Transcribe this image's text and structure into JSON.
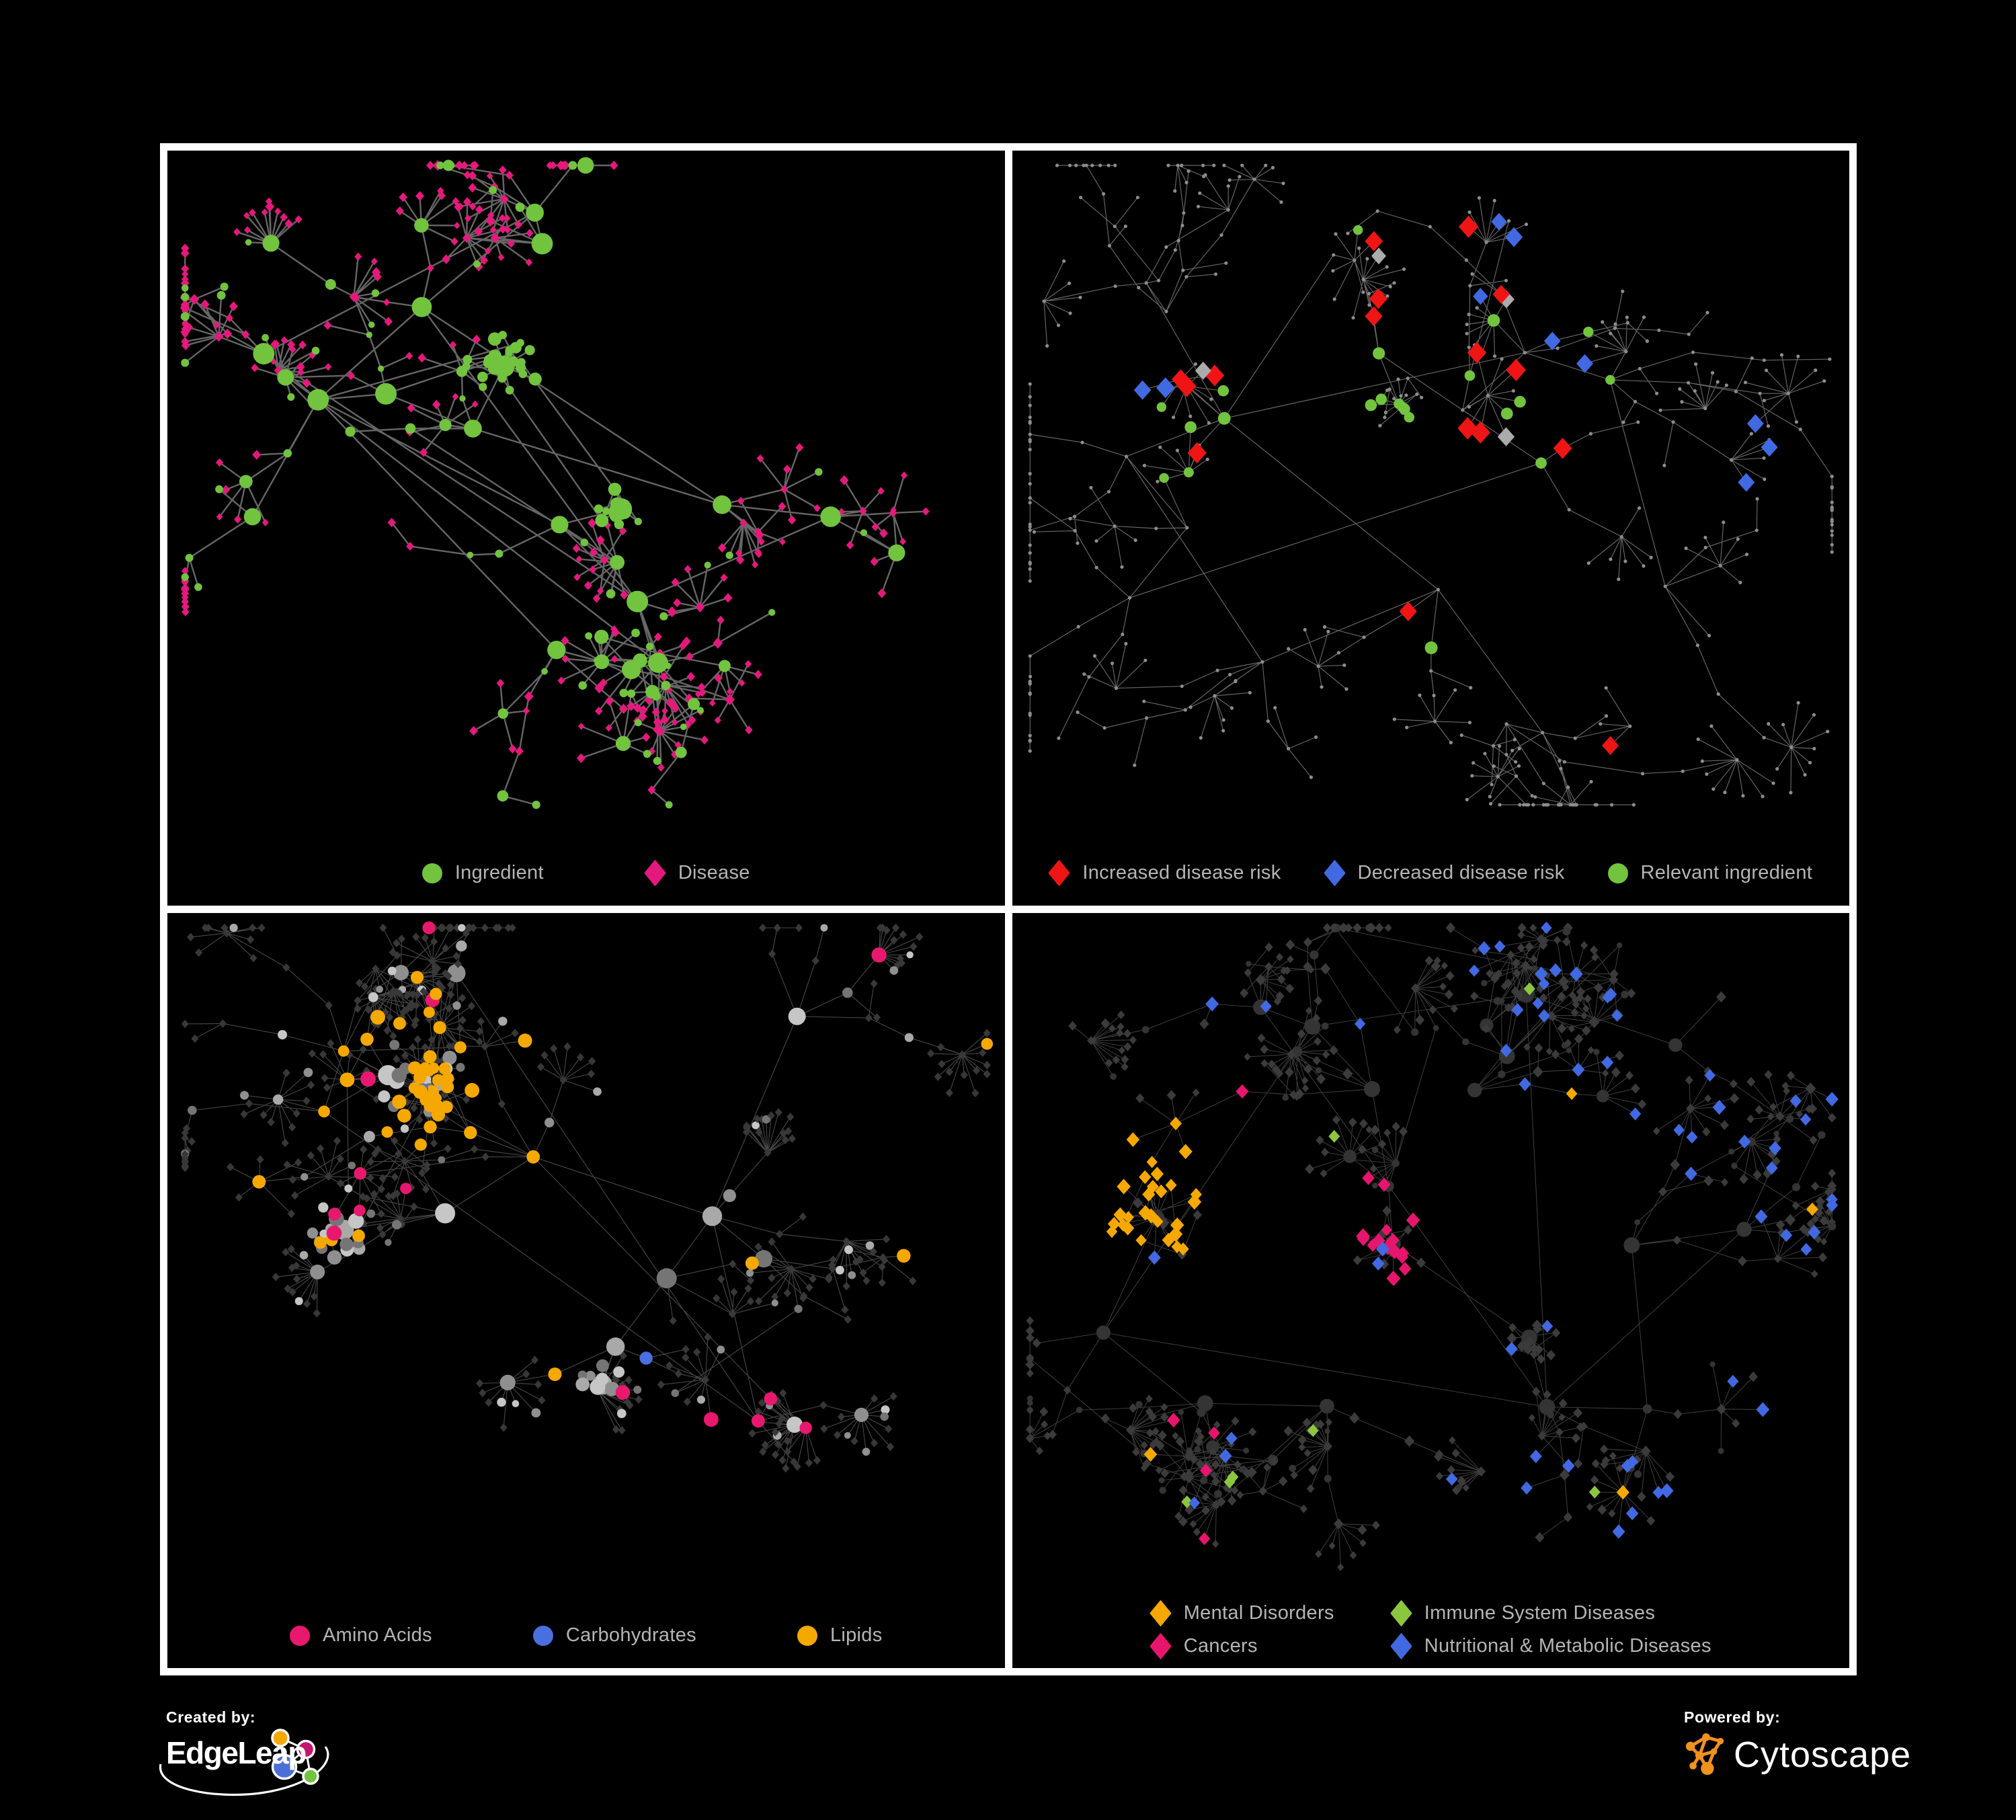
{
  "footer": {
    "created_by_label": "Created by:",
    "brand": "EdgeLeap",
    "powered_by_label": "Powered by:",
    "engine": "Cytoscape"
  },
  "colors": {
    "background": "#000000",
    "panel_bg": "#000000",
    "frame": "#ffffff",
    "legend_text": "#b5b5b5",
    "green": "#72C33E",
    "pink": "#E5197D",
    "red": "#EF1515",
    "blue": "#4169E1",
    "silver": "#ABABAB",
    "orange": "#F5A800",
    "amino_pink": "#E8186F",
    "carb_blue": "#4A6FE0",
    "cancer_magenta": "#E8156E",
    "immune_lime": "#8CC63F",
    "dark_diamond": "#3b3b3b",
    "dark_circle": "#343434",
    "tiny_gray": "#8d8d8d",
    "cytoscape_orange": "#F0921E"
  },
  "panels": [
    {
      "id": "ingredient-disease",
      "legend_gap": 150,
      "legend": [
        {
          "label": "Ingredient",
          "shape": "circle",
          "color": "#72C33E"
        },
        {
          "label": "Disease",
          "shape": "diamond",
          "color": "#E5197D"
        }
      ],
      "network": {
        "seed": 1337,
        "theme": "p1",
        "hubs": 17,
        "minBr": 2,
        "varBr": 3,
        "steps": 3,
        "circFrac": 0.42,
        "dSize": 6.3,
        "starP": 0.8,
        "starMin": 4,
        "starVar": 9,
        "cross": 14,
        "edge": [
          "#666666",
          2.4,
          1
        ],
        "clusters": [
          {
            "fx": 0.4,
            "fy": 0.29,
            "n": 24,
            "spread": 54,
            "k": "c"
          },
          {
            "fx": 0.53,
            "fy": 0.47,
            "n": 12,
            "spread": 34,
            "k": "c"
          }
        ]
      }
    },
    {
      "id": "disease-risk",
      "legend_gap": 64,
      "legend": [
        {
          "label": "Increased disease risk",
          "shape": "diamond",
          "color": "#EF1515"
        },
        {
          "label": "Decreased disease risk",
          "shape": "diamond",
          "color": "#4169E1"
        },
        {
          "label": "Relevant ingredient",
          "shape": "circle",
          "color": "#72C33E"
        }
      ],
      "network": {
        "seed": 4242,
        "theme": "p2",
        "hubs": 18,
        "minBr": 2,
        "varBr": 3,
        "steps": 4,
        "circFrac": 0.38,
        "dSize": 5.5,
        "starP": 0.72,
        "starMin": 3,
        "starVar": 8,
        "cross": 10,
        "edge": [
          "#7a7a7a",
          1.15,
          0.85
        ],
        "clusters": [
          {
            "fx": 0.45,
            "fy": 0.33,
            "n": 18,
            "spread": 44,
            "k": "c"
          }
        ]
      }
    },
    {
      "id": "nutrient-classes",
      "legend_gap": 150,
      "legend": [
        {
          "label": "Amino Acids",
          "shape": "circle",
          "color": "#E8186F"
        },
        {
          "label": "Carbohydrates",
          "shape": "circle",
          "color": "#4A6FE0"
        },
        {
          "label": "Lipids",
          "shape": "circle",
          "color": "#F5A800"
        }
      ],
      "network": {
        "seed": 777,
        "theme": "p3",
        "hubs": 16,
        "minBr": 2,
        "varBr": 3,
        "steps": 3,
        "circFrac": 0.45,
        "dSize": 5.8,
        "starP": 0.8,
        "starMin": 5,
        "starVar": 10,
        "cross": 16,
        "edge": [
          "#8f8f8f",
          1.1,
          0.5
        ],
        "clusters": [
          {
            "fx": 0.3,
            "fy": 0.24,
            "n": 26,
            "spread": 58,
            "k": "c"
          },
          {
            "fx": 0.2,
            "fy": 0.42,
            "n": 18,
            "spread": 48,
            "k": "c"
          },
          {
            "fx": 0.52,
            "fy": 0.62,
            "n": 10,
            "spread": 30,
            "k": "c"
          }
        ]
      }
    },
    {
      "id": "disease-categories",
      "legend_layout": "grid2",
      "legend": [
        {
          "label": "Mental Disorders",
          "shape": "diamond",
          "color": "#F5A800"
        },
        {
          "label": "Immune System Diseases",
          "shape": "diamond",
          "color": "#8CC63F"
        },
        {
          "label": "Cancers",
          "shape": "diamond",
          "color": "#E8156E"
        },
        {
          "label": "Nutritional & Metabolic Diseases",
          "shape": "diamond",
          "color": "#4169E1"
        }
      ],
      "network": {
        "seed": 2024,
        "theme": "p4",
        "hubs": 18,
        "minBr": 2,
        "varBr": 3,
        "steps": 3,
        "circFrac": 0.22,
        "dSize": 7,
        "starP": 0.85,
        "starMin": 5,
        "starVar": 11,
        "cross": 22,
        "edge": [
          "#9d9d9d",
          0.95,
          0.42
        ],
        "clusters": [
          {
            "fx": 0.17,
            "fy": 0.41,
            "n": 30,
            "spread": 72,
            "k": "d"
          },
          {
            "fx": 0.47,
            "fy": 0.44,
            "n": 26,
            "spread": 66,
            "k": "d"
          },
          {
            "fx": 0.62,
            "fy": 0.55,
            "n": 16,
            "spread": 42,
            "k": "d"
          }
        ]
      }
    }
  ]
}
